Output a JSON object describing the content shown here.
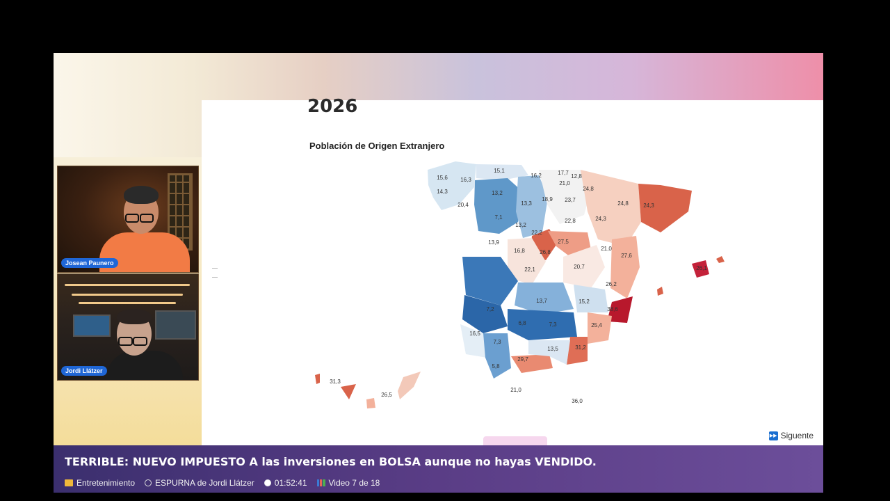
{
  "slide": {
    "year": "2026",
    "title": "Población de Origen Extranjero",
    "next_label": "Siguente"
  },
  "map_labels": {
    "coruna": "15,6",
    "lugo": "16,3",
    "asturias": "15,1",
    "cantabria": "16,2",
    "bizkaia": "17,7",
    "gipuzkoa": "12,8",
    "araba": "21,0",
    "pontevedra": "14,3",
    "ourense": "20,4",
    "leon": "13,2",
    "palencia": "13,3",
    "burgos": "18,9",
    "rioja": "23,7",
    "navarra": "24,8",
    "huesca": "24,8",
    "zamora": "7,1",
    "valladolid": "13,2",
    "soria": "22,8",
    "zaragoza": "24,3",
    "tarragona": "24,3",
    "salamanca": "13,9",
    "avila": "16,8",
    "segovia": "22,2",
    "guadalajara": "27,5",
    "madrid": "26,8",
    "teruel": "21,0",
    "castellon": "27,6",
    "toledo": "22,1",
    "cuenca": "20,7",
    "valencia": "26,2",
    "baleares": "26,1",
    "ciudad_real": "13,7",
    "albacete": "15,2",
    "alicante": "38,6",
    "badajoz": "7,2",
    "jaen": "6,8",
    "granada": "7,3",
    "murcia": "25,4",
    "huelva": "16,5",
    "sevilla": "7,3",
    "cordoba": "13,5",
    "almeria": "31,2",
    "cadiz": "5,8",
    "malaga": "29,7",
    "canarias_w": "31,3",
    "canarias_e": "26,5",
    "ceuta": "21,0",
    "melilla": "36,0"
  },
  "cameras": [
    {
      "name": "Josean Paunero"
    },
    {
      "name": "Jordi Llátzer"
    }
  ],
  "video": {
    "title": "TERRIBLE: NUEVO IMPUESTO A las inversiones en BOLSA aunque no hayas VENDIDO.",
    "category": "Entretenimiento",
    "channel": "ESPURNA de Jordi Llátzer",
    "duration": "01:52:41",
    "position": "Video 7 de 18"
  }
}
